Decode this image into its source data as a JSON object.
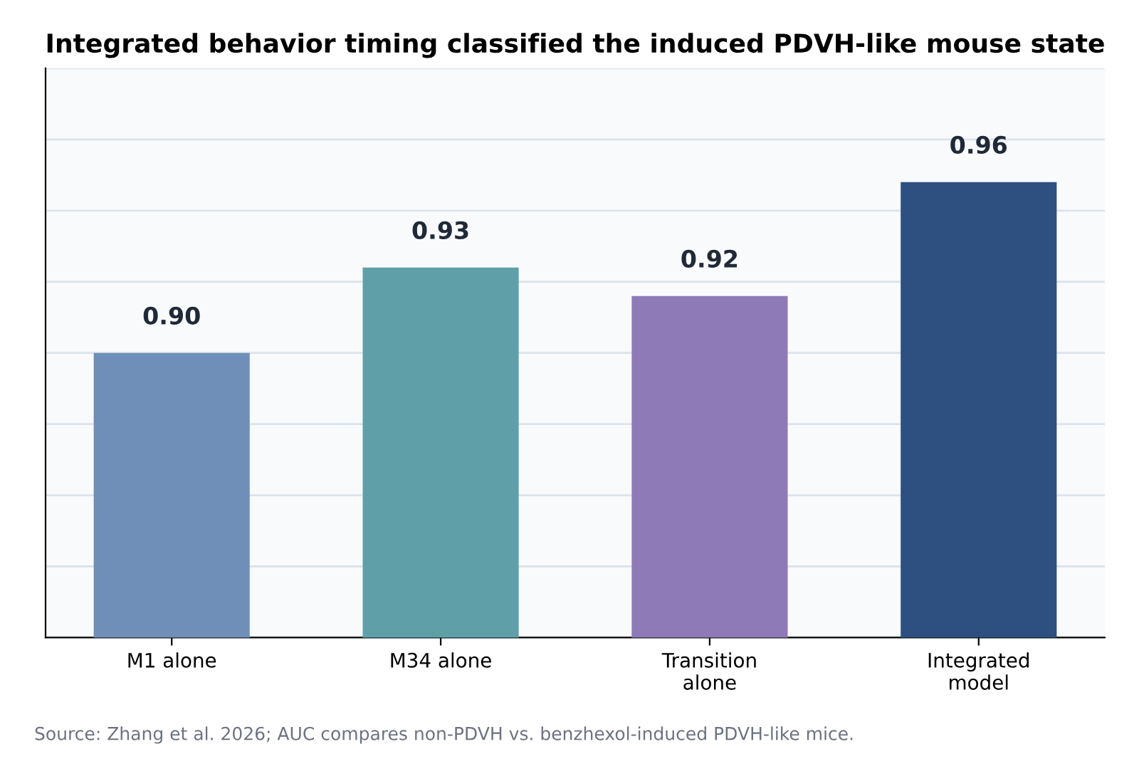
{
  "chart_data": {
    "type": "bar",
    "title": "Integrated behavior timing classified the induced PDVH-like mouse state",
    "categories": [
      "M1 alone",
      "M34 alone",
      "Transition\nalone",
      "Integrated\nmodel"
    ],
    "values": [
      0.9,
      0.93,
      0.92,
      0.96
    ],
    "colors": [
      "#6f8fb8",
      "#5fa0a8",
      "#8f7ab8",
      "#2d5080"
    ],
    "ylim": [
      0.8,
      1.0
    ],
    "yticks": [
      {
        "value": 0.8,
        "label": null
      },
      {
        "value": 0.825,
        "label": null
      },
      {
        "value": 0.85,
        "label": null
      },
      {
        "value": 0.875,
        "label": null
      },
      {
        "value": 0.9,
        "label": null
      },
      {
        "value": 0.925,
        "label": null
      },
      {
        "value": 0.95,
        "label": null
      },
      {
        "value": 0.975,
        "label": null
      },
      {
        "value": 1.0,
        "label": null
      }
    ],
    "tick_labels": "x",
    "grid": "y",
    "value_labels": [
      "0.90",
      "0.93",
      "0.92",
      "0.96"
    ],
    "annotations": [
      "Source: Zhang et al. 2026; AUC compares non-PDVH vs. benzhexol-induced PDVH-like mice."
    ]
  }
}
